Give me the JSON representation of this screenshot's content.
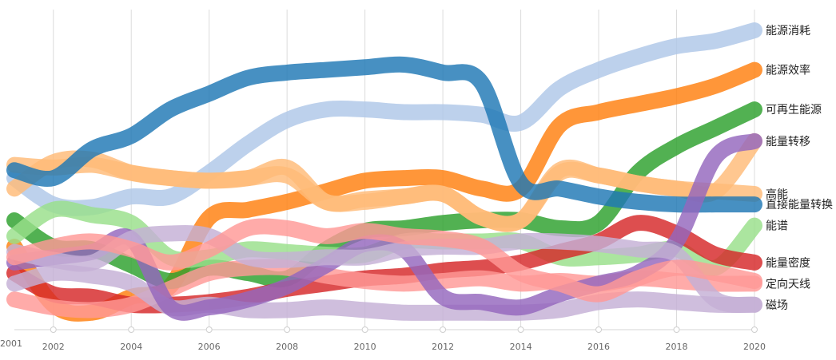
{
  "chart_data": {
    "type": "line",
    "title": "",
    "xlabel": "",
    "ylabel": "",
    "x_years": [
      2001,
      2002,
      2003,
      2004,
      2005,
      2006,
      2007,
      2008,
      2009,
      2010,
      2011,
      2012,
      2013,
      2014,
      2015,
      2016,
      2017,
      2018,
      2019,
      2020
    ],
    "x_tick_labels": [
      "2001",
      "2002",
      "2004",
      "2006",
      "2008",
      "2010",
      "2012",
      "2014",
      "2016",
      "2018",
      "2020"
    ],
    "rank_note": "values are vertical positions (1 = top rank) at each year",
    "series": [
      {
        "name": "能源消耗",
        "color": "#aec7e8",
        "values": [
          5.6,
          6.6,
          6.7,
          6.3,
          6.3,
          5.4,
          4.3,
          3.4,
          3.0,
          3.0,
          3.1,
          3.1,
          3.2,
          3.5,
          2.2,
          1.5,
          1.0,
          0.6,
          0.4,
          0.0
        ]
      },
      {
        "name": "能源效率",
        "color": "#ff7f0e",
        "values": [
          8.2,
          10.4,
          10.7,
          10.1,
          9.7,
          7.1,
          6.8,
          6.5,
          6.1,
          5.7,
          5.6,
          5.6,
          6.0,
          6.0,
          3.6,
          3.1,
          2.8,
          2.5,
          2.1,
          1.5
        ]
      },
      {
        "name": "可再生能源",
        "color": "#2ca02c",
        "values": [
          7.2,
          8.2,
          8.3,
          8.9,
          9.5,
          9.0,
          9.2,
          9.4,
          8.3,
          7.6,
          7.5,
          7.3,
          7.2,
          7.2,
          7.5,
          7.3,
          5.4,
          4.4,
          3.7,
          3.0
        ]
      },
      {
        "name": "高能",
        "color": "#ffbb78",
        "values": [
          5.1,
          5.2,
          5.1,
          5.4,
          5.6,
          5.7,
          5.6,
          5.5,
          6.5,
          6.5,
          6.3,
          6.2,
          7.1,
          7.2,
          5.4,
          5.5,
          5.8,
          6.0,
          6.1,
          6.2
        ]
      },
      {
        "name": "能量转移",
        "color": "#ffbb78",
        "values": [
          6.0,
          5.0,
          4.9,
          5.4,
          5.6,
          5.7,
          5.6,
          5.2,
          6.5,
          6.4,
          6.3,
          6.2,
          7.1,
          7.2,
          5.3,
          5.5,
          5.8,
          6.0,
          6.1,
          4.2
        ]
      },
      {
        "name": "直接能量转换",
        "color": "#1f77b4",
        "values": [
          5.3,
          5.6,
          4.5,
          4.0,
          3.0,
          2.4,
          1.8,
          1.6,
          1.5,
          1.4,
          1.3,
          1.6,
          2.0,
          5.8,
          6.0,
          6.3,
          6.5,
          6.6,
          6.6,
          6.6
        ]
      },
      {
        "name": "能谱",
        "color": "#98df8a",
        "values": [
          7.8,
          6.8,
          7.0,
          7.3,
          8.6,
          8.6,
          8.3,
          8.4,
          8.5,
          8.5,
          8.0,
          8.0,
          8.0,
          8.0,
          8.6,
          8.6,
          8.5,
          8.3,
          9.0,
          7.4
        ]
      },
      {
        "name": "能量密度",
        "color": "#d62728",
        "values": [
          9.2,
          10.0,
          10.1,
          10.4,
          10.4,
          10.3,
          10.1,
          9.8,
          9.6,
          9.4,
          9.3,
          9.1,
          9.0,
          8.8,
          8.4,
          8.0,
          7.3,
          7.7,
          8.5,
          8.8
        ]
      },
      {
        "name": "定向天线",
        "color": "#ff9896",
        "values": [
          10.2,
          10.5,
          10.6,
          10.4,
          9.8,
          9.2,
          9.0,
          9.0,
          9.3,
          9.5,
          9.6,
          9.5,
          9.4,
          9.6,
          9.5,
          9.6,
          9.4,
          9.5,
          9.6,
          9.6
        ]
      },
      {
        "name": "磁场",
        "color": "#c5b0d5",
        "values": [
          9.6,
          9.2,
          9.3,
          9.6,
          10.5,
          10.4,
          10.6,
          10.6,
          10.5,
          10.6,
          10.7,
          10.7,
          10.7,
          10.7,
          10.6,
          10.3,
          10.2,
          10.3,
          10.4,
          10.4
        ]
      },
      {
        "name": "",
        "color": "#9467bd",
        "values": [
          8.8,
          8.6,
          8.4,
          7.9,
          10.5,
          10.5,
          10.2,
          9.7,
          8.9,
          8.1,
          8.3,
          10.1,
          10.3,
          10.5,
          10.0,
          9.6,
          9.2,
          8.0,
          4.8,
          4.2
        ]
      },
      {
        "name": "",
        "color": "#c5b0d5",
        "values": [
          8.4,
          8.7,
          8.8,
          7.9,
          7.7,
          7.8,
          8.6,
          8.7,
          8.6,
          8.6,
          8.3,
          8.2,
          8.2,
          8.0,
          8.0,
          8.1,
          8.3,
          8.5,
          10.2,
          10.4
        ]
      },
      {
        "name": "",
        "color": "#ff9896",
        "values": [
          8.6,
          8.2,
          8.0,
          8.3,
          8.8,
          8.3,
          7.5,
          7.5,
          7.8,
          7.6,
          7.8,
          7.9,
          8.2,
          9.2,
          9.6,
          10.0,
          9.4,
          9.0,
          9.2,
          9.5
        ]
      }
    ]
  }
}
